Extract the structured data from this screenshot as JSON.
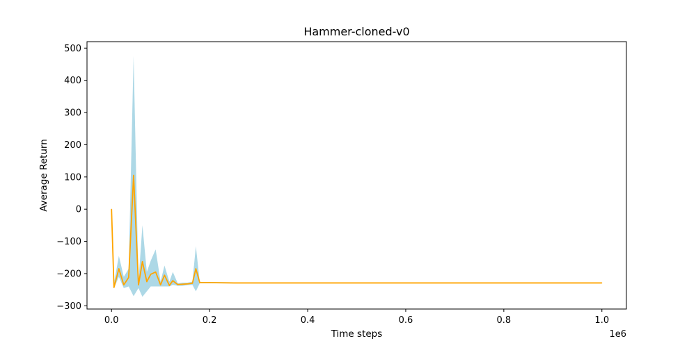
{
  "chart_data": {
    "type": "line",
    "title": "Hammer-cloned-v0",
    "xlabel": "Time steps",
    "ylabel": "Average Return",
    "x_offset_label": "1e6",
    "xlim": [
      -0.05,
      1.05
    ],
    "ylim": [
      -310,
      520
    ],
    "xticks": [
      0.0,
      0.2,
      0.4,
      0.6,
      0.8,
      1.0
    ],
    "xtick_labels": [
      "0.0",
      "0.2",
      "0.4",
      "0.6",
      "0.8",
      "1.0"
    ],
    "yticks": [
      -300,
      -200,
      -100,
      0,
      100,
      200,
      300,
      400,
      500
    ],
    "ytick_labels": [
      "−300",
      "−200",
      "−100",
      "0",
      "100",
      "200",
      "300",
      "400",
      "500"
    ],
    "grid": false,
    "legend": "none",
    "colors": {
      "line": "#ffa500",
      "band": "#add8e6"
    },
    "series": [
      {
        "x": [
          0.0,
          0.005,
          0.015,
          0.025,
          0.035,
          0.045,
          0.055,
          0.063,
          0.072,
          0.08,
          0.09,
          0.1,
          0.108,
          0.118,
          0.125,
          0.135,
          0.145,
          0.155,
          0.165,
          0.172,
          0.18,
          0.2,
          0.25,
          0.3,
          0.35,
          0.4,
          0.45,
          0.5,
          0.55,
          0.6,
          0.65,
          0.7,
          0.75,
          0.8,
          0.85,
          0.9,
          0.95,
          1.0
        ],
        "y": [
          0,
          -243,
          -185,
          -235,
          -212,
          105,
          -235,
          -163,
          -225,
          -202,
          -195,
          -235,
          -205,
          -237,
          -222,
          -234,
          -233,
          -232,
          -230,
          -185,
          -228,
          -228,
          -229,
          -229,
          -229,
          -229,
          -229,
          -229,
          -229,
          -229,
          -229,
          -229,
          -229,
          -229,
          -229,
          -229,
          -229,
          -229
        ],
        "lower": [
          0,
          -245,
          -210,
          -245,
          -240,
          -270,
          -245,
          -272,
          -255,
          -240,
          -240,
          -240,
          -240,
          -240,
          -235,
          -238,
          -238,
          -236,
          -235,
          -255,
          -230,
          -230,
          -230,
          -230,
          -230,
          -230,
          -230,
          -230,
          -230,
          -230,
          -230,
          -230,
          -230,
          -230,
          -230,
          -230,
          -230,
          -230
        ],
        "upper": [
          0,
          -230,
          -145,
          -210,
          -185,
          475,
          -225,
          -50,
          -195,
          -160,
          -125,
          -225,
          -175,
          -225,
          -195,
          -230,
          -228,
          -228,
          -225,
          -115,
          -226,
          -226,
          -227,
          -227,
          -227,
          -227,
          -227,
          -227,
          -227,
          -227,
          -227,
          -227,
          -227,
          -227,
          -227,
          -227,
          -227,
          -227
        ]
      }
    ]
  }
}
